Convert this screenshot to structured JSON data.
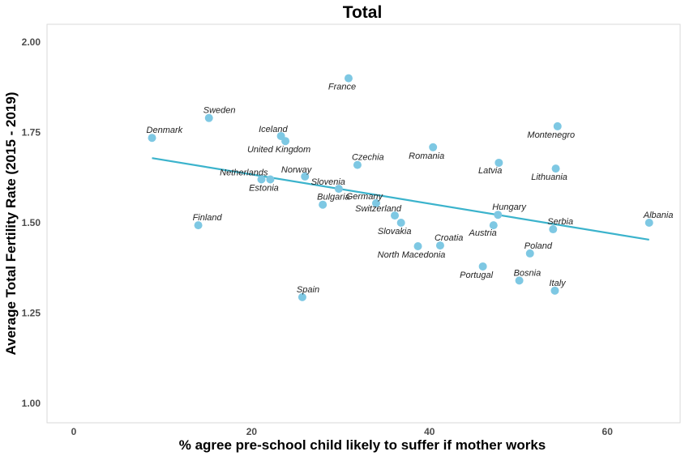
{
  "chart_data": {
    "type": "scatter",
    "title": "Total",
    "xlabel": "% agree pre-school child likely to suffer if mother works",
    "ylabel": "Average Total Fertility Rate (2015 - 2019)",
    "xlim": [
      -3,
      68
    ],
    "ylim": [
      0.95,
      2.05
    ],
    "xticks": [
      0,
      20,
      40,
      60
    ],
    "yticks": [
      1.0,
      1.25,
      1.5,
      1.75,
      2.0
    ],
    "ytick_labels": [
      "1.00",
      "1.25",
      "1.50",
      "1.75",
      "2.00"
    ],
    "grid": false,
    "point_color": "#7ec8e3",
    "trend_color": "#3bb3cc",
    "trend_line": {
      "x": [
        8.8,
        64.7
      ],
      "y": [
        1.679,
        1.453
      ]
    },
    "points": [
      {
        "label": "France",
        "x": 30.9,
        "y": 1.9,
        "label_pos": "below"
      },
      {
        "label": "Sweden",
        "x": 15.2,
        "y": 1.79,
        "label_pos": "above"
      },
      {
        "label": "Denmark",
        "x": 8.8,
        "y": 1.735,
        "label_pos": "above"
      },
      {
        "label": "Iceland",
        "x": 23.3,
        "y": 1.74,
        "label_pos": "above-left"
      },
      {
        "label": "United Kingdom",
        "x": 23.8,
        "y": 1.726,
        "label_pos": "below"
      },
      {
        "label": "Czechia",
        "x": 31.9,
        "y": 1.66,
        "label_pos": "above"
      },
      {
        "label": "Netherlands",
        "x": 21.1,
        "y": 1.62,
        "label_pos": "above-left"
      },
      {
        "label": "Estonia",
        "x": 22.1,
        "y": 1.62,
        "label_pos": "below"
      },
      {
        "label": "Norway",
        "x": 26.0,
        "y": 1.628,
        "label_pos": "above-left"
      },
      {
        "label": "Slovenia",
        "x": 29.8,
        "y": 1.594,
        "label_pos": "above-left"
      },
      {
        "label": "Bulgaria",
        "x": 28.0,
        "y": 1.55,
        "label_pos": "above"
      },
      {
        "label": "Germany",
        "x": 34.0,
        "y": 1.554,
        "label_pos": "above-left"
      },
      {
        "label": "Switzerland",
        "x": 36.1,
        "y": 1.52,
        "label_pos": "above-left"
      },
      {
        "label": "Slovakia",
        "x": 36.8,
        "y": 1.5,
        "label_pos": "below"
      },
      {
        "label": "Finland",
        "x": 14.0,
        "y": 1.493,
        "label_pos": "above"
      },
      {
        "label": "Spain",
        "x": 25.7,
        "y": 1.294,
        "label_pos": "above"
      },
      {
        "label": "Romania",
        "x": 40.4,
        "y": 1.709,
        "label_pos": "below"
      },
      {
        "label": "Latvia",
        "x": 47.8,
        "y": 1.666,
        "label_pos": "below-left"
      },
      {
        "label": "Montenegro",
        "x": 54.4,
        "y": 1.767,
        "label_pos": "below"
      },
      {
        "label": "Lithuania",
        "x": 54.2,
        "y": 1.65,
        "label_pos": "below"
      },
      {
        "label": "Hungary",
        "x": 47.7,
        "y": 1.522,
        "label_pos": "above"
      },
      {
        "label": "Austria",
        "x": 47.2,
        "y": 1.493,
        "label_pos": "below-left"
      },
      {
        "label": "Serbia",
        "x": 53.9,
        "y": 1.482,
        "label_pos": "above"
      },
      {
        "label": "Albania",
        "x": 64.7,
        "y": 1.5,
        "label_pos": "above"
      },
      {
        "label": "Poland",
        "x": 51.3,
        "y": 1.415,
        "label_pos": "above"
      },
      {
        "label": "Croatia",
        "x": 41.2,
        "y": 1.437,
        "label_pos": "above"
      },
      {
        "label": "North Macedonia",
        "x": 38.7,
        "y": 1.435,
        "label_pos": "below"
      },
      {
        "label": "Portugal",
        "x": 46.0,
        "y": 1.379,
        "label_pos": "below"
      },
      {
        "label": "Bosnia",
        "x": 50.1,
        "y": 1.34,
        "label_pos": "above"
      },
      {
        "label": "Italy",
        "x": 54.1,
        "y": 1.312,
        "label_pos": "above"
      }
    ]
  }
}
